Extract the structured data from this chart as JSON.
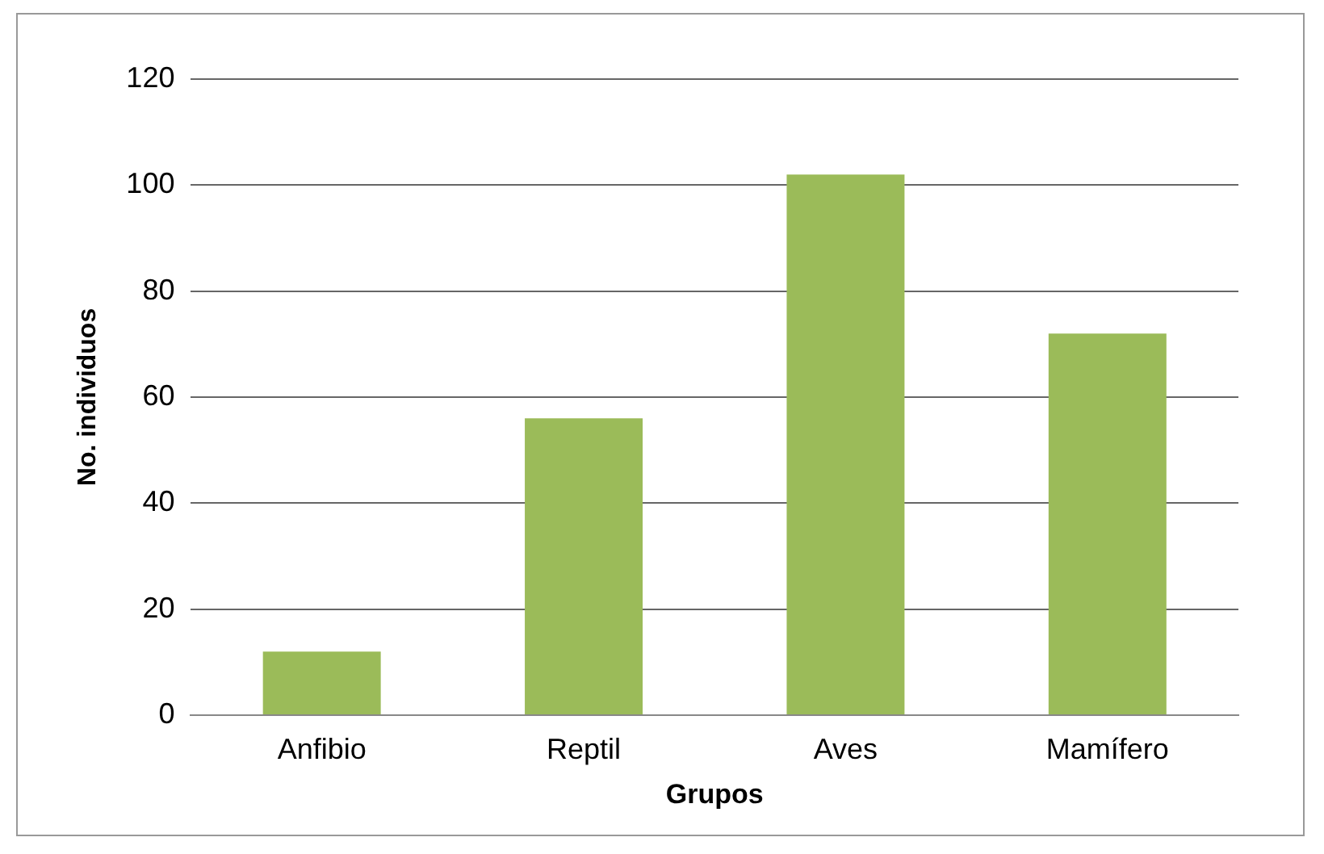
{
  "chart_data": {
    "type": "bar",
    "xlabel": "Grupos",
    "ylabel": "No. individuos",
    "categories": [
      "Anfibio",
      "Reptil",
      "Aves",
      "Mamífero"
    ],
    "values": [
      12,
      56,
      102,
      72
    ],
    "color": "#9bbb59",
    "ylim": [
      0,
      120
    ],
    "yticks": [
      0,
      20,
      40,
      60,
      80,
      100,
      120
    ],
    "grid": "y",
    "legend": false
  }
}
